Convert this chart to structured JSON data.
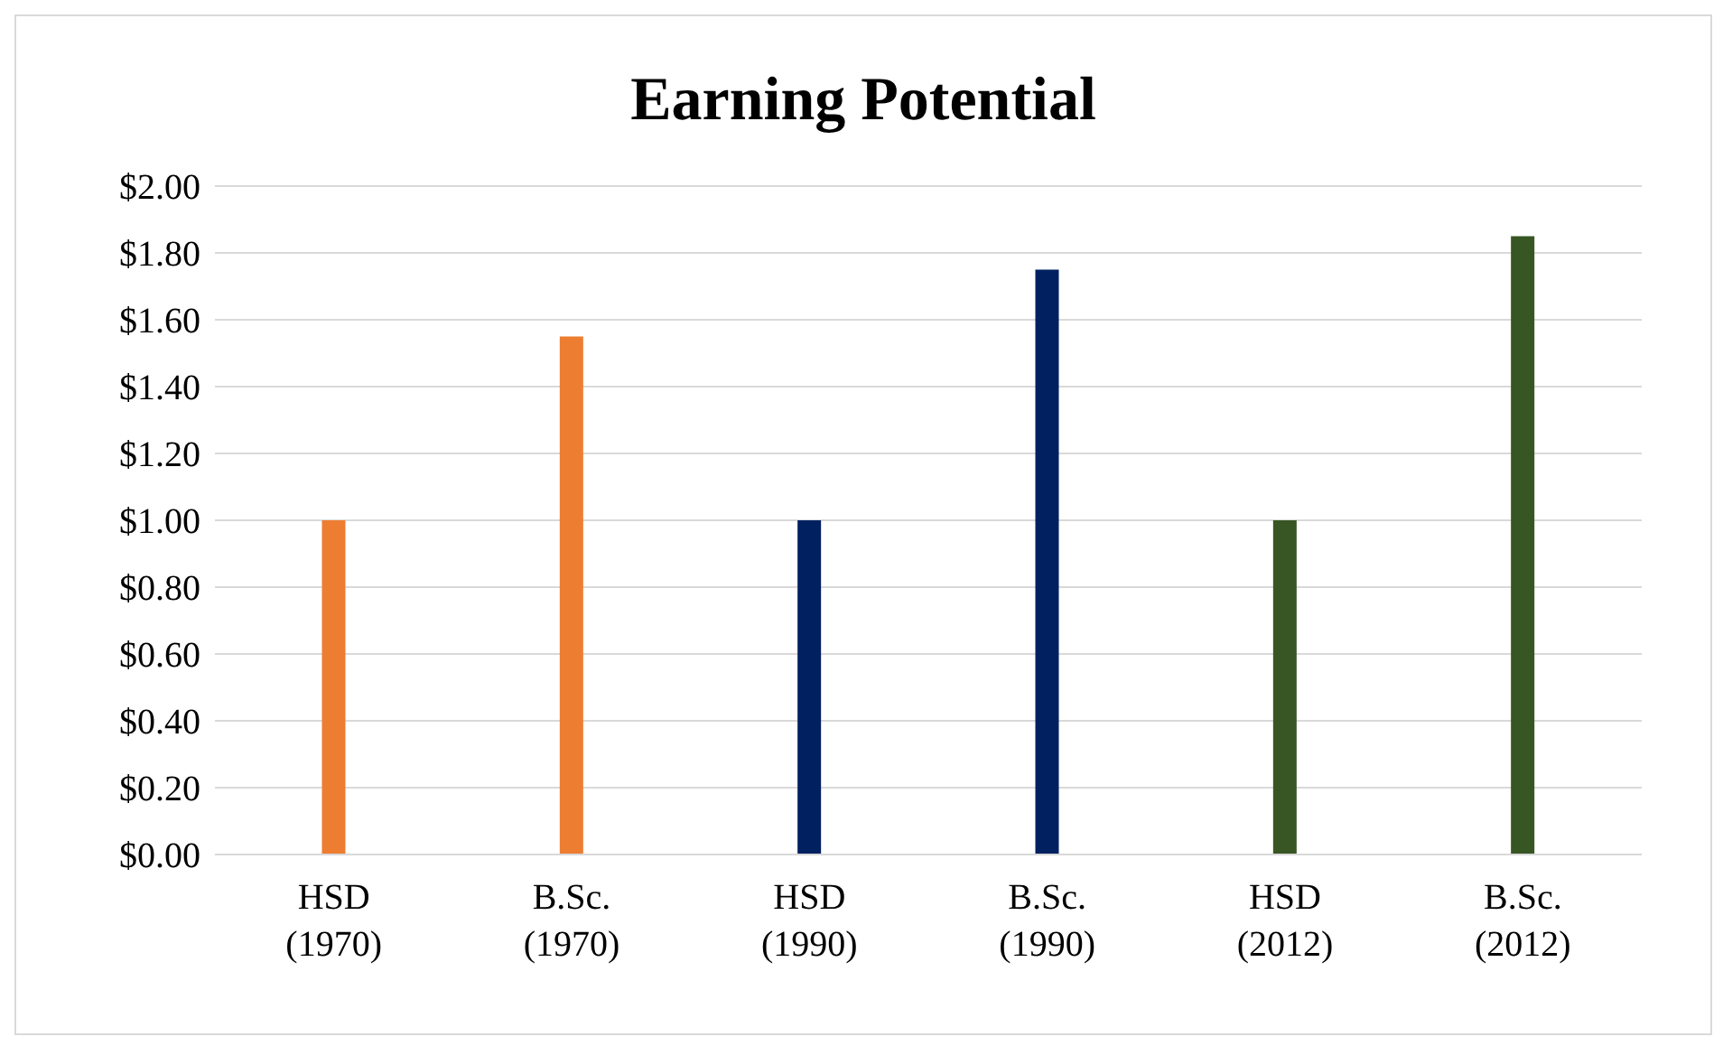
{
  "chart_data": {
    "type": "bar",
    "title": "Earning Potential",
    "categories": [
      "HSD (1970)",
      "B.Sc. (1970)",
      "HSD (1990)",
      "B.Sc. (1990)",
      "HSD (2012)",
      "B.Sc. (2012)"
    ],
    "values": [
      1.0,
      1.55,
      1.0,
      1.75,
      1.0,
      1.85
    ],
    "colors": [
      "#ed7d31",
      "#ed7d31",
      "#002060",
      "#002060",
      "#375623",
      "#375623"
    ],
    "ylim": [
      0,
      2
    ],
    "yticks": [
      {
        "value": 0,
        "label": "$0.00"
      },
      {
        "value": 0.2,
        "label": "$0.20"
      },
      {
        "value": 0.4,
        "label": "$0.40"
      },
      {
        "value": 0.6,
        "label": "$0.60"
      },
      {
        "value": 0.8,
        "label": "$0.80"
      },
      {
        "value": 1,
        "label": "$1.00"
      },
      {
        "value": 1.2,
        "label": "$1.20"
      },
      {
        "value": 1.4,
        "label": "$1.40"
      },
      {
        "value": 1.6,
        "label": "$1.60"
      },
      {
        "value": 1.8,
        "label": "$1.80"
      },
      {
        "value": 2,
        "label": "$2.00"
      }
    ],
    "grid": "y"
  }
}
